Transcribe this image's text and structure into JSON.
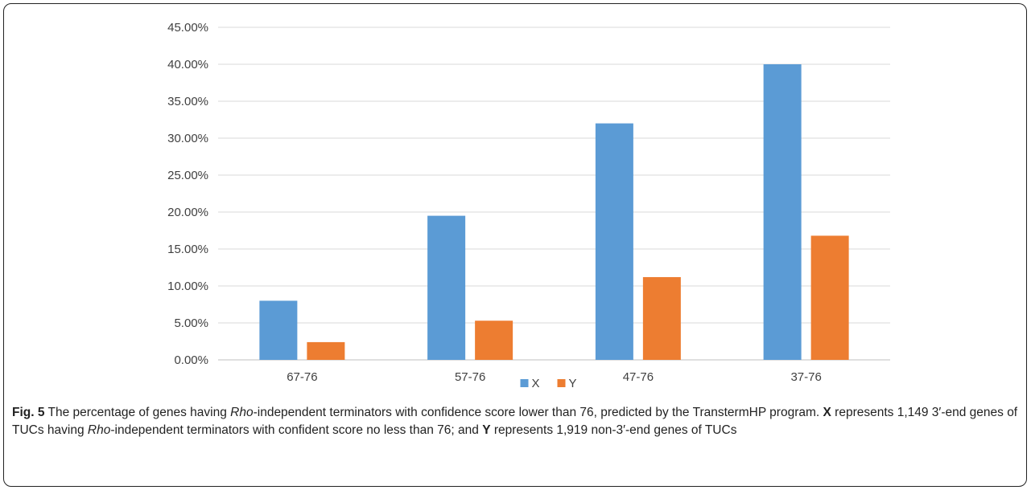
{
  "chart_data": {
    "type": "bar",
    "title": "",
    "xlabel": "",
    "ylabel": "",
    "categories": [
      "67-76",
      "57-76",
      "47-76",
      "37-76"
    ],
    "series": [
      {
        "name": "X",
        "color": "#5B9BD5",
        "values": [
          8.0,
          19.5,
          32.0,
          40.0
        ]
      },
      {
        "name": "Y",
        "color": "#ED7D31",
        "values": [
          2.4,
          5.3,
          11.2,
          16.8
        ]
      }
    ],
    "ylim": [
      0,
      45
    ],
    "yticks": [
      0,
      5,
      10,
      15,
      20,
      25,
      30,
      35,
      40,
      45
    ],
    "ytick_labels": [
      "0.00%",
      "5.00%",
      "10.00%",
      "15.00%",
      "20.00%",
      "25.00%",
      "30.00%",
      "35.00%",
      "40.00%",
      "45.00%"
    ],
    "grid": true,
    "legend": "bottom-center"
  },
  "caption": {
    "fig_label": "Fig. 5",
    "part1": " The percentage of genes having ",
    "rho1": "Rho",
    "part2": "-independent terminators with confidence score lower than 76, predicted by the TranstermHP program. ",
    "x_bold": "X",
    "part3": " represents 1,149 3′-end genes of TUCs having ",
    "rho2": "Rho",
    "part4": "-independent terminators with confident score no less than 76; and ",
    "y_bold": "Y",
    "part5": " represents 1,919 non-3′-end genes of TUCs"
  }
}
